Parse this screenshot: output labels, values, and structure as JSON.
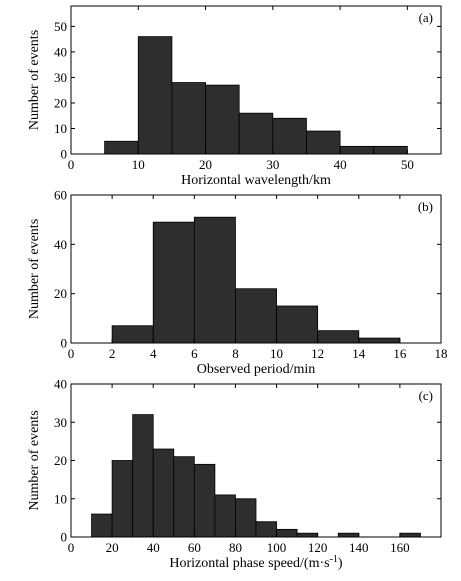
{
  "colors": {
    "bar_fill": "#2e2e2e",
    "bar_stroke": "#000000",
    "axis": "#000000"
  },
  "chart_data": [
    {
      "type": "bar",
      "panel_label": "(a)",
      "xlabel": "Horizontal wavelength/km",
      "ylabel": "Number of events",
      "xlim": [
        0,
        55
      ],
      "ylim": [
        0,
        58
      ],
      "xticks": [
        0,
        10,
        20,
        30,
        40,
        50
      ],
      "yticks": [
        0,
        10,
        20,
        30,
        40,
        50
      ],
      "bins": [
        {
          "x0": 5,
          "x1": 10,
          "count": 5
        },
        {
          "x0": 10,
          "x1": 15,
          "count": 46
        },
        {
          "x0": 15,
          "x1": 20,
          "count": 28
        },
        {
          "x0": 20,
          "x1": 25,
          "count": 27
        },
        {
          "x0": 25,
          "x1": 30,
          "count": 16
        },
        {
          "x0": 30,
          "x1": 35,
          "count": 14
        },
        {
          "x0": 35,
          "x1": 40,
          "count": 9
        },
        {
          "x0": 40,
          "x1": 45,
          "count": 3
        },
        {
          "x0": 45,
          "x1": 50,
          "count": 3
        }
      ]
    },
    {
      "type": "bar",
      "panel_label": "(b)",
      "xlabel": "Observed period/min",
      "ylabel": "Number of events",
      "xlim": [
        0,
        18
      ],
      "ylim": [
        0,
        60
      ],
      "xticks": [
        0,
        2,
        4,
        6,
        8,
        10,
        12,
        14,
        16,
        18
      ],
      "yticks": [
        0,
        20,
        40,
        60
      ],
      "bins": [
        {
          "x0": 2,
          "x1": 4,
          "count": 7
        },
        {
          "x0": 4,
          "x1": 6,
          "count": 49
        },
        {
          "x0": 6,
          "x1": 8,
          "count": 51
        },
        {
          "x0": 8,
          "x1": 10,
          "count": 22
        },
        {
          "x0": 10,
          "x1": 12,
          "count": 15
        },
        {
          "x0": 12,
          "x1": 14,
          "count": 5
        },
        {
          "x0": 14,
          "x1": 16,
          "count": 2
        }
      ]
    },
    {
      "type": "bar",
      "panel_label": "(c)",
      "xlabel": "Horizontal phase speed/(m·s",
      "xlabel_sup": "-1",
      "xlabel_suffix": ")",
      "ylabel": "Number of events",
      "xlim": [
        0,
        180
      ],
      "ylim": [
        0,
        40
      ],
      "xticks": [
        0,
        20,
        40,
        60,
        80,
        100,
        120,
        140,
        160
      ],
      "yticks": [
        0,
        10,
        20,
        30,
        40
      ],
      "bins": [
        {
          "x0": 10,
          "x1": 20,
          "count": 6
        },
        {
          "x0": 20,
          "x1": 30,
          "count": 20
        },
        {
          "x0": 30,
          "x1": 40,
          "count": 32
        },
        {
          "x0": 40,
          "x1": 50,
          "count": 23
        },
        {
          "x0": 50,
          "x1": 60,
          "count": 21
        },
        {
          "x0": 60,
          "x1": 70,
          "count": 19
        },
        {
          "x0": 70,
          "x1": 80,
          "count": 11
        },
        {
          "x0": 80,
          "x1": 90,
          "count": 10
        },
        {
          "x0": 90,
          "x1": 100,
          "count": 4
        },
        {
          "x0": 100,
          "x1": 110,
          "count": 2
        },
        {
          "x0": 110,
          "x1": 120,
          "count": 1
        },
        {
          "x0": 130,
          "x1": 140,
          "count": 1
        },
        {
          "x0": 160,
          "x1": 170,
          "count": 1
        }
      ]
    }
  ]
}
